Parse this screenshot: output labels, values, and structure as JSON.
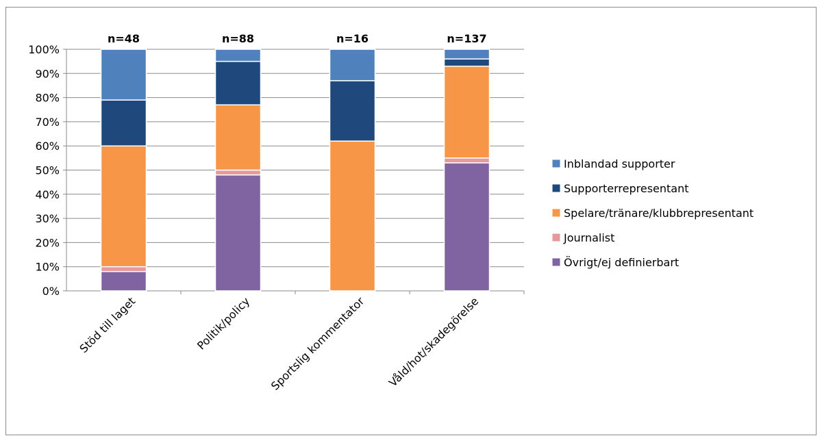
{
  "chart_data": {
    "type": "bar",
    "stacked": true,
    "percent": true,
    "categories": [
      "Stöd till laget",
      "Politik/policy",
      "Sportslig kommentator",
      "Våld/hot/skadegörelse"
    ],
    "bar_labels": [
      "n=48",
      "n=88",
      "n=16",
      "n=137"
    ],
    "ylim": [
      0,
      100
    ],
    "yticks": [
      "0%",
      "10%",
      "20%",
      "30%",
      "40%",
      "50%",
      "60%",
      "70%",
      "80%",
      "90%",
      "100%"
    ],
    "grid": true,
    "legend_position": "right",
    "series": [
      {
        "name": "Övrigt/ej definierbart",
        "color": "#8064a2",
        "values": [
          8,
          48,
          0,
          53
        ]
      },
      {
        "name": "Journalist",
        "color": "#e6999b",
        "values": [
          2,
          2,
          0,
          2
        ]
      },
      {
        "name": "Spelare/tränare/klubbrepresentant",
        "color": "#f79646",
        "values": [
          50,
          27,
          62,
          38
        ]
      },
      {
        "name": "Supporterrepresentant",
        "color": "#1f497d",
        "values": [
          19,
          18,
          25,
          3
        ]
      },
      {
        "name": "Inblandad supporter",
        "color": "#4f81bd",
        "values": [
          21,
          5,
          13,
          4
        ]
      }
    ]
  }
}
